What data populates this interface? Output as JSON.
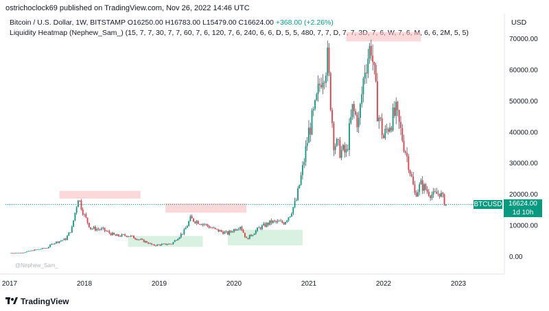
{
  "header": {
    "text": "ostrichoclock69 published on TradingView.com, Nov 26, 2022 14:46 UTC"
  },
  "legend": {
    "symbol": "Bitcoin / U.S. Dollar, 1W, BITSTAMP",
    "open": "O16250.00",
    "high": "H16783.00",
    "low": "L15479.00",
    "close": "C16624.00",
    "change": "+368.00 (+2.26%)",
    "indicator": "Liquidity Heatmap (Nephew_Sam_) (15, 7, 7, 30, 7, 7, 60, 7, 6, 120, 7, 6, 240, 6, 6, D, 5, 5, 480, 7, 7, D, 7, 7, 3D, 7, 6, W, 7, 6, M, 6, 6, 2M, 5, 5)"
  },
  "price_axis": {
    "currency": "USD",
    "labels": [
      "70000.00",
      "60000.00",
      "50000.00",
      "40000.00",
      "30000.00",
      "20000.00",
      "10000.00",
      "0.00"
    ]
  },
  "time_axis": {
    "labels": [
      "2017",
      "2018",
      "2019",
      "2020",
      "2021",
      "2022",
      "2023"
    ]
  },
  "last_price": {
    "symbol": "BTCUSD",
    "price": "16624.00",
    "countdown": "1d 10h"
  },
  "watermark": "@Nephew_Sam_",
  "brand": "TradingView",
  "colors": {
    "up": "#089981",
    "down": "#f23645",
    "wick": "#131722"
  },
  "chart_data": {
    "type": "candlestick",
    "y_min": 0,
    "y_max": 70000,
    "series": [
      {
        "date": "2017-01",
        "price": 1000
      },
      {
        "date": "2017-03",
        "price": 1100
      },
      {
        "date": "2017-05",
        "price": 2000
      },
      {
        "date": "2017-07",
        "price": 2700
      },
      {
        "date": "2017-08",
        "price": 4200
      },
      {
        "date": "2017-10",
        "price": 5500
      },
      {
        "date": "2017-11",
        "price": 9000
      },
      {
        "date": "2017-12",
        "price": 19000
      },
      {
        "date": "2018-01",
        "price": 13000
      },
      {
        "date": "2018-02",
        "price": 9000
      },
      {
        "date": "2018-04",
        "price": 8500
      },
      {
        "date": "2018-06",
        "price": 6500
      },
      {
        "date": "2018-08",
        "price": 6700
      },
      {
        "date": "2018-11",
        "price": 4500
      },
      {
        "date": "2018-12",
        "price": 3500
      },
      {
        "date": "2019-03",
        "price": 4000
      },
      {
        "date": "2019-05",
        "price": 8000
      },
      {
        "date": "2019-06",
        "price": 12000
      },
      {
        "date": "2019-08",
        "price": 10500
      },
      {
        "date": "2019-10",
        "price": 8500
      },
      {
        "date": "2019-12",
        "price": 7300
      },
      {
        "date": "2020-02",
        "price": 9800
      },
      {
        "date": "2020-03",
        "price": 5500
      },
      {
        "date": "2020-05",
        "price": 9000
      },
      {
        "date": "2020-07",
        "price": 11000
      },
      {
        "date": "2020-09",
        "price": 10800
      },
      {
        "date": "2020-10",
        "price": 13500
      },
      {
        "date": "2020-11",
        "price": 18000
      },
      {
        "date": "2020-12",
        "price": 28000
      },
      {
        "date": "2021-01",
        "price": 40000
      },
      {
        "date": "2021-02",
        "price": 47000
      },
      {
        "date": "2021-03",
        "price": 58000
      },
      {
        "date": "2021-04",
        "price": 63000
      },
      {
        "date": "2021-05",
        "price": 37000
      },
      {
        "date": "2021-06",
        "price": 34000
      },
      {
        "date": "2021-07",
        "price": 33000
      },
      {
        "date": "2021-08",
        "price": 47000
      },
      {
        "date": "2021-09",
        "price": 43000
      },
      {
        "date": "2021-10",
        "price": 61000
      },
      {
        "date": "2021-11",
        "price": 68000
      },
      {
        "date": "2021-12",
        "price": 47000
      },
      {
        "date": "2022-01",
        "price": 38000
      },
      {
        "date": "2022-02",
        "price": 43000
      },
      {
        "date": "2022-03",
        "price": 46000
      },
      {
        "date": "2022-04",
        "price": 38000
      },
      {
        "date": "2022-05",
        "price": 30000
      },
      {
        "date": "2022-06",
        "price": 20000
      },
      {
        "date": "2022-07",
        "price": 23000
      },
      {
        "date": "2022-08",
        "price": 21000
      },
      {
        "date": "2022-09",
        "price": 19500
      },
      {
        "date": "2022-10",
        "price": 20500
      },
      {
        "date": "2022-11",
        "price": 16624
      }
    ],
    "zones": [
      {
        "kind": "red",
        "start": "2017-09",
        "end": "2018-10",
        "y_low": 18500,
        "y_high": 21000
      },
      {
        "kind": "red",
        "start": "2019-02",
        "end": "2020-03",
        "y_low": 14000,
        "y_high": 17000
      },
      {
        "kind": "green",
        "start": "2018-08",
        "end": "2019-08",
        "y_low": 3000,
        "y_high": 6500
      },
      {
        "kind": "green",
        "start": "2019-12",
        "end": "2020-12",
        "y_low": 3500,
        "y_high": 8500
      },
      {
        "kind": "red",
        "start": "2021-07",
        "end": "2022-07",
        "y_low": 69000,
        "y_high": 72000
      }
    ]
  }
}
